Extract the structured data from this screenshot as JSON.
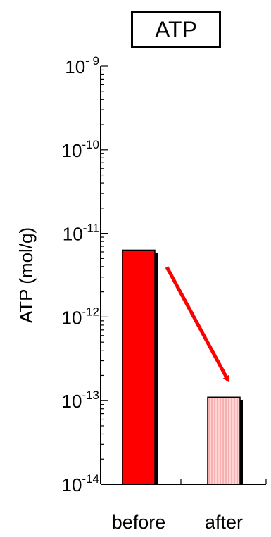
{
  "chart_data": {
    "type": "bar",
    "title": "ATP",
    "ylabel": "ATP (mol/g)",
    "xlabel": "",
    "yscale": "log",
    "ylim": [
      1e-14,
      1e-09
    ],
    "categories": [
      "before",
      "after"
    ],
    "values": [
      6.3e-12,
      1.1e-13
    ],
    "bar_colors": [
      "#ff0000",
      "#ffc8c8"
    ],
    "bar_styles": [
      "solid",
      "vertical-hatch"
    ],
    "ytick_labels": [
      {
        "base": "10",
        "exp": "-14",
        "value": 1e-14
      },
      {
        "base": "10",
        "exp": "-13",
        "value": 1e-13
      },
      {
        "base": "10",
        "exp": "-12",
        "value": 1e-12
      },
      {
        "base": "10",
        "exp": "-11",
        "value": 1e-11
      },
      {
        "base": "10",
        "exp": "-10",
        "value": 1e-10
      },
      {
        "base": "10",
        "exp": "- 9",
        "value": 1e-09
      }
    ],
    "annotation": {
      "type": "arrow",
      "from": "before",
      "to": "after",
      "color": "#ff0000"
    }
  }
}
